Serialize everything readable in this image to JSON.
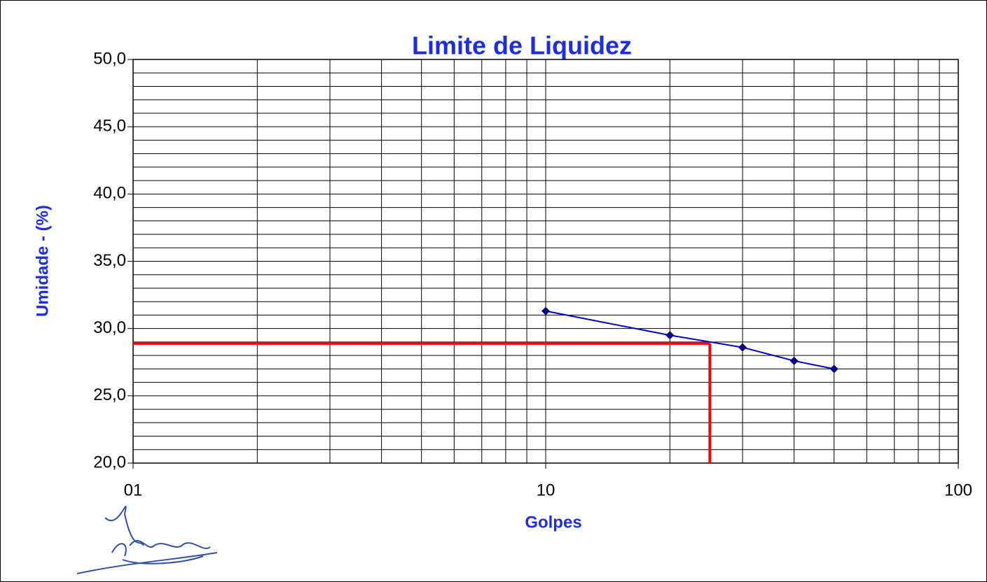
{
  "chart_data": {
    "type": "line",
    "title": "Limite de Liquidez",
    "xlabel": "Golpes",
    "ylabel": "Umidade - (%)",
    "xscale": "log",
    "xlim": [
      1,
      100
    ],
    "xticks": [
      {
        "value": 1,
        "label": "01"
      },
      10,
      100
    ],
    "minor_xticks": [
      2,
      3,
      4,
      5,
      6,
      7,
      8,
      9,
      20,
      30,
      40,
      50,
      60,
      70,
      80,
      90
    ],
    "ylim": [
      20,
      50
    ],
    "yticks": [
      {
        "value": 20,
        "label": "20,0"
      },
      {
        "value": 25,
        "label": "25,0"
      },
      {
        "value": 30,
        "label": "30,0"
      },
      {
        "value": 35,
        "label": "35,0"
      },
      {
        "value": 40,
        "label": "40,0"
      },
      {
        "value": 45,
        "label": "45,0"
      },
      {
        "value": 50,
        "label": "50,0"
      }
    ],
    "minor_yticks": [
      21,
      22,
      23,
      24,
      26,
      27,
      28,
      29,
      31,
      32,
      33,
      34,
      36,
      37,
      38,
      39,
      41,
      42,
      43,
      44,
      46,
      47,
      48,
      49
    ],
    "grid": true,
    "series": [
      {
        "color": "#0000cc",
        "marker_color": "#000080",
        "x": [
          10,
          20,
          30,
          40,
          50
        ],
        "values": [
          31.3,
          29.5,
          28.6,
          27.6,
          27.0
        ]
      }
    ],
    "reference": {
      "x": 25,
      "y": 28.9,
      "color": "#ff0000"
    }
  }
}
